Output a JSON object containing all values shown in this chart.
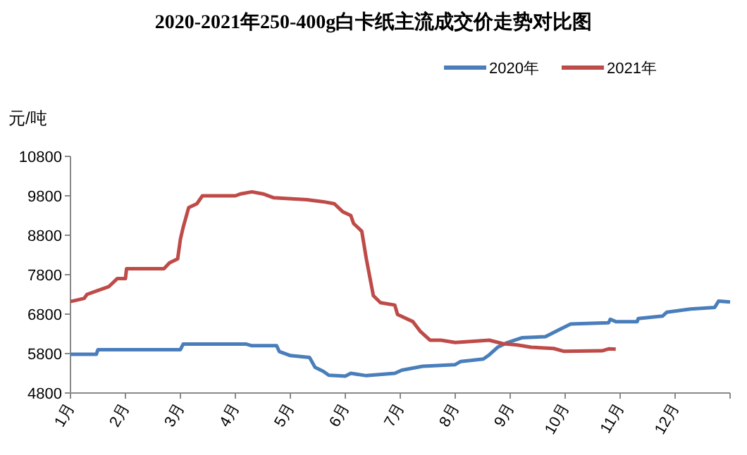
{
  "chart_data": {
    "type": "line",
    "title": "2020-2021年250-400g白卡纸主流成交价走势对比图",
    "ylabel": "元/吨",
    "legend": "top right",
    "grid": false,
    "line_style": "solid",
    "xlim": [
      1,
      13
    ],
    "xticks": [
      {
        "value": 1,
        "label": "1月"
      },
      {
        "value": 2,
        "label": "2月"
      },
      {
        "value": 3,
        "label": "3月"
      },
      {
        "value": 4,
        "label": "4月"
      },
      {
        "value": 5,
        "label": "5月"
      },
      {
        "value": 6,
        "label": "6月"
      },
      {
        "value": 7,
        "label": "7月"
      },
      {
        "value": 8,
        "label": "8月"
      },
      {
        "value": 9,
        "label": "9月"
      },
      {
        "value": 10,
        "label": "10月"
      },
      {
        "value": 11,
        "label": "11月"
      },
      {
        "value": 12,
        "label": "12月"
      },
      {
        "value": 13,
        "label": null
      }
    ],
    "ylim": [
      4800,
      10800
    ],
    "yticks": [
      4800,
      5800,
      6800,
      7800,
      8800,
      9800,
      10800
    ],
    "series": [
      {
        "name": "2020年",
        "color": "#4a7ebb",
        "x": [
          1,
          1.47,
          1.5,
          3.0,
          3.05,
          4.2,
          4.3,
          4.75,
          4.8,
          5.0,
          5.35,
          5.45,
          5.6,
          5.7,
          6.0,
          6.1,
          6.38,
          6.9,
          7.03,
          7.41,
          8.0,
          8.1,
          8.51,
          8.62,
          8.77,
          8.95,
          9.21,
          9.64,
          9.9,
          10.1,
          10.79,
          10.82,
          10.92,
          11.31,
          11.33,
          11.77,
          11.85,
          12.28,
          12.72,
          12.79,
          13.0
        ],
        "values": [
          5780,
          5780,
          5900,
          5900,
          6040,
          6040,
          6000,
          6000,
          5850,
          5750,
          5700,
          5450,
          5350,
          5250,
          5230,
          5300,
          5240,
          5300,
          5380,
          5480,
          5520,
          5600,
          5660,
          5770,
          5960,
          6080,
          6200,
          6230,
          6410,
          6550,
          6580,
          6670,
          6610,
          6610,
          6690,
          6750,
          6850,
          6930,
          6970,
          7130,
          7110
        ]
      },
      {
        "name": "2021年",
        "color": "#be4b48",
        "x": [
          1,
          1.25,
          1.3,
          1.5,
          1.7,
          1.85,
          2.0,
          2.02,
          2.7,
          2.8,
          2.95,
          3.0,
          3.05,
          3.15,
          3.3,
          3.4,
          4.0,
          4.1,
          4.3,
          4.5,
          4.7,
          5.3,
          5.6,
          5.8,
          5.95,
          6.1,
          6.15,
          6.3,
          6.38,
          6.51,
          6.64,
          6.9,
          6.95,
          7.23,
          7.36,
          7.54,
          7.74,
          8.0,
          8.62,
          8.87,
          9.13,
          9.38,
          9.79,
          9.97,
          10.67,
          10.79,
          10.92
        ],
        "values": [
          7120,
          7200,
          7300,
          7400,
          7500,
          7700,
          7700,
          7950,
          7950,
          8100,
          8200,
          8700,
          9000,
          9500,
          9600,
          9800,
          9800,
          9850,
          9900,
          9850,
          9750,
          9700,
          9650,
          9600,
          9400,
          9300,
          9100,
          8900,
          8220,
          7270,
          7090,
          7030,
          6790,
          6610,
          6370,
          6140,
          6140,
          6080,
          6140,
          6050,
          6020,
          5960,
          5930,
          5860,
          5870,
          5920,
          5910
        ]
      }
    ]
  }
}
